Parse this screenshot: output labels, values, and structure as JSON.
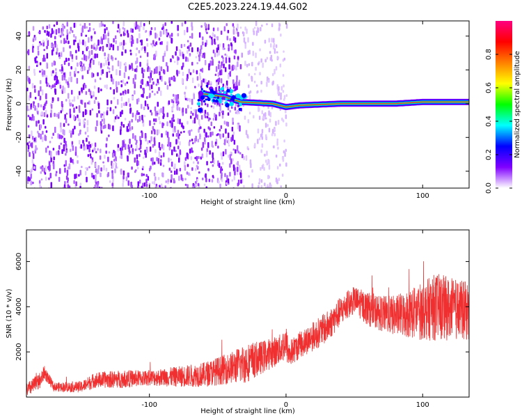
{
  "title": "C2E5.2023.224.19.44.G02",
  "chart_data": [
    {
      "type": "heatmap",
      "xlabel": "Height of straight line (km)",
      "ylabel": "Frequency (Hz)",
      "xlim": [
        -190,
        134
      ],
      "ylim": [
        -50,
        49
      ],
      "xticks": [
        -100,
        0,
        100
      ],
      "yticks": [
        -40,
        -20,
        0,
        20,
        40
      ],
      "colorbar": {
        "label": "Normalized spectral amplitude",
        "range": [
          0,
          1
        ],
        "ticks": [
          0.0,
          0.2,
          0.4,
          0.6,
          0.8
        ],
        "colors": [
          "#ffffff",
          "#8000ff",
          "#0000ff",
          "#00ffff",
          "#00ff00",
          "#ffff00",
          "#ff8000",
          "#ff0000",
          "#ff0080"
        ]
      },
      "features": {
        "noise_region_x": [
          -190,
          -32
        ],
        "sparse_region_x": [
          -32,
          0
        ],
        "carrier_ridge": [
          {
            "x": -62,
            "f": 6
          },
          {
            "x": -45,
            "f": 4
          },
          {
            "x": -33,
            "f": 1
          },
          {
            "x": -10,
            "f": 0
          },
          {
            "x": 0,
            "f": -2
          },
          {
            "x": 10,
            "f": -1
          },
          {
            "x": 40,
            "f": 0
          },
          {
            "x": 80,
            "f": 0
          },
          {
            "x": 100,
            "f": 1
          },
          {
            "x": 134,
            "f": 1
          }
        ]
      }
    },
    {
      "type": "line",
      "xlabel": "Height of straight line (km)",
      "ylabel": "SNR (10 * v/v)",
      "xlim": [
        -190,
        134
      ],
      "ylim": [
        0,
        7400
      ],
      "xticks": [
        -100,
        0,
        100
      ],
      "yticks": [
        2000,
        4000,
        6000
      ],
      "color": "#f03030",
      "envelope": {
        "x": [
          -190,
          -180,
          -177,
          -170,
          -150,
          -140,
          -120,
          -100,
          -80,
          -60,
          -40,
          -30,
          -20,
          -5,
          0,
          2,
          10,
          20,
          30,
          40,
          50,
          60,
          70,
          80,
          90,
          100,
          110,
          120,
          134
        ],
        "mid": [
          300,
          700,
          1100,
          450,
          450,
          750,
          800,
          850,
          900,
          1000,
          1300,
          1500,
          1700,
          2100,
          2400,
          1900,
          2300,
          2700,
          3100,
          3800,
          4300,
          3900,
          3700,
          3600,
          3700,
          3800,
          4000,
          3900,
          3800
        ],
        "amp": [
          300,
          400,
          300,
          200,
          250,
          350,
          400,
          350,
          450,
          550,
          700,
          900,
          750,
          650,
          800,
          600,
          600,
          650,
          700,
          650,
          600,
          750,
          800,
          900,
          1100,
          1300,
          1500,
          1400,
          1300
        ]
      }
    }
  ]
}
